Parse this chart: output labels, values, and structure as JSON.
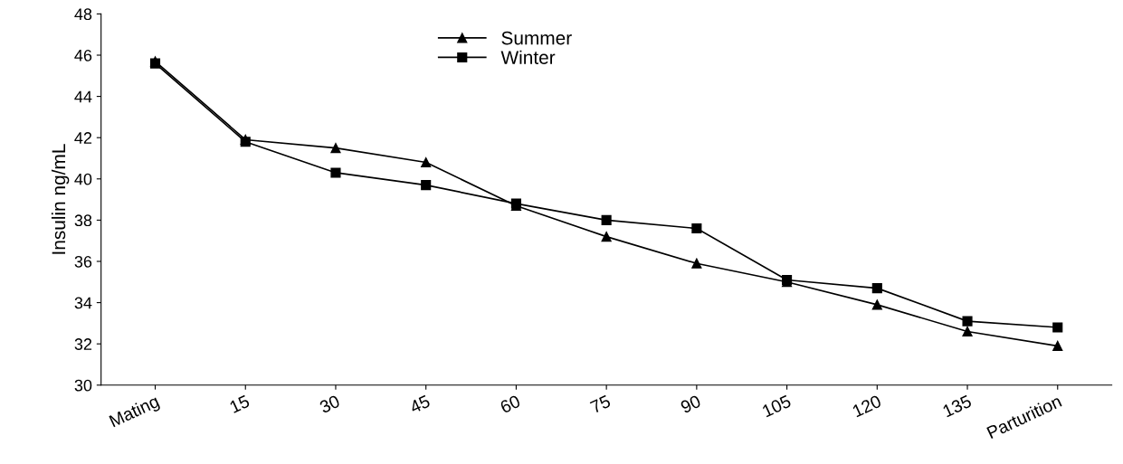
{
  "chart_data": {
    "type": "line",
    "ylabel": "Insulin ng/mL",
    "categories": [
      "Mating",
      "15",
      "30",
      "45",
      "60",
      "75",
      "90",
      "105",
      "120",
      "135",
      "Parturition"
    ],
    "series": [
      {
        "name": "Summer",
        "color": "#000000",
        "marker": "triangle",
        "values": [
          45.7,
          41.9,
          41.5,
          40.8,
          38.7,
          37.2,
          35.9,
          35.0,
          33.9,
          32.6,
          31.9
        ]
      },
      {
        "name": "Winter",
        "color": "#000000",
        "marker": "square",
        "values": [
          45.6,
          41.8,
          40.3,
          39.7,
          38.8,
          38.0,
          37.6,
          35.1,
          34.7,
          33.1,
          32.8
        ]
      }
    ],
    "ylim": [
      30,
      48
    ],
    "yticks": [
      30,
      32,
      34,
      36,
      38,
      40,
      42,
      44,
      46,
      48
    ],
    "grid": false,
    "legend": "top",
    "line_style": "solid"
  }
}
